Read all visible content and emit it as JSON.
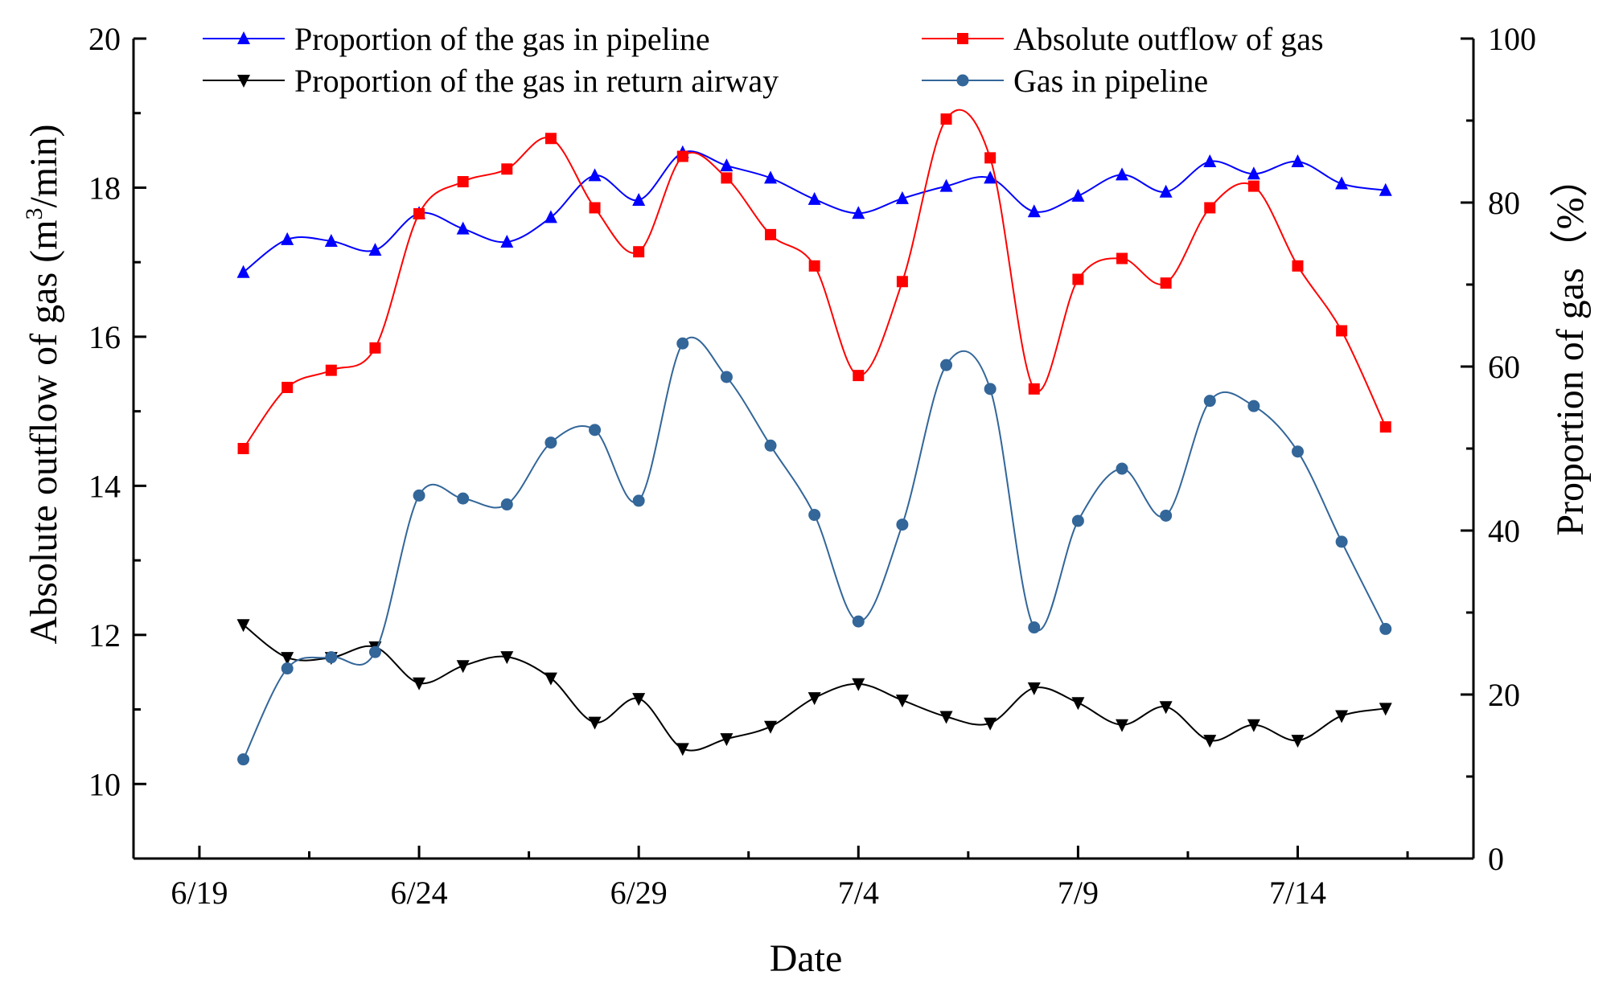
{
  "chart_data": {
    "type": "line",
    "title": "",
    "xlabel": "Date",
    "ylabel_left": "Absolute outflow of gas (m³/min)",
    "ylabel_left_parts": {
      "prefix": "Absolute outflow of gas (m",
      "superscript": "3",
      "suffix": "/min)"
    },
    "ylabel_right": "Proportion of gas（%）",
    "x_tick_labels": [
      "6/19",
      "6/24",
      "6/29",
      "7/4",
      "7/9",
      "7/14"
    ],
    "x_tick_days": [
      0,
      5,
      10,
      15,
      20,
      25
    ],
    "xlim_days": [
      -1.5,
      29
    ],
    "ylim_left": [
      9,
      20
    ],
    "yticks_left": [
      "10",
      "12",
      "14",
      "16",
      "18",
      "20"
    ],
    "ylim_right": [
      0,
      100
    ],
    "yticks_right": [
      "0",
      "20",
      "40",
      "60",
      "80",
      "100"
    ],
    "x_days": [
      1,
      2,
      3,
      4,
      5,
      6,
      7,
      8,
      9,
      10,
      11,
      12,
      13,
      14,
      15,
      16,
      17,
      18,
      19,
      20,
      21,
      22,
      23,
      24,
      25,
      26,
      27
    ],
    "grid": false,
    "legend_position": "top",
    "series": [
      {
        "name": "Proportion of the gas in pipeline",
        "axis": "right",
        "marker": "triangle-up",
        "color": "#0000ff",
        "values": [
          71.5,
          75.5,
          75.3,
          74.2,
          78.7,
          76.8,
          75.2,
          78.2,
          83.3,
          80.3,
          86.1,
          84.5,
          83.0,
          80.4,
          78.7,
          80.5,
          82.0,
          83.0,
          78.9,
          80.8,
          83.4,
          81.3,
          85.0,
          83.5,
          85.0,
          82.3,
          81.5
        ]
      },
      {
        "name": "Absolute outflow of gas",
        "axis": "left",
        "marker": "square",
        "color": "#ff0000",
        "values": [
          14.5,
          15.32,
          15.55,
          15.85,
          17.65,
          18.08,
          18.25,
          18.66,
          17.73,
          17.14,
          18.42,
          18.13,
          17.37,
          16.95,
          15.48,
          16.74,
          18.92,
          18.4,
          15.3,
          16.77,
          17.05,
          16.72,
          17.73,
          18.02,
          16.95,
          16.08,
          14.79
        ]
      },
      {
        "name": "Proportion of the gas in return airway",
        "axis": "right",
        "marker": "triangle-down",
        "color": "#000000",
        "values": [
          28.5,
          24.5,
          24.5,
          25.8,
          21.4,
          23.5,
          24.6,
          22.0,
          16.6,
          19.5,
          13.4,
          14.6,
          16.1,
          19.6,
          21.3,
          19.3,
          17.3,
          16.5,
          20.8,
          19.0,
          16.3,
          18.5,
          14.4,
          16.3,
          14.4,
          17.4,
          18.3
        ]
      },
      {
        "name": "Gas in pipeline",
        "axis": "left",
        "marker": "circle",
        "color": "#336699",
        "values": [
          10.33,
          11.55,
          11.7,
          11.77,
          13.87,
          13.83,
          13.75,
          14.58,
          14.75,
          13.8,
          15.91,
          15.46,
          14.54,
          13.61,
          12.18,
          13.48,
          15.62,
          15.3,
          12.1,
          13.53,
          14.23,
          13.6,
          15.14,
          15.07,
          14.46,
          13.25,
          12.08
        ]
      }
    ]
  }
}
